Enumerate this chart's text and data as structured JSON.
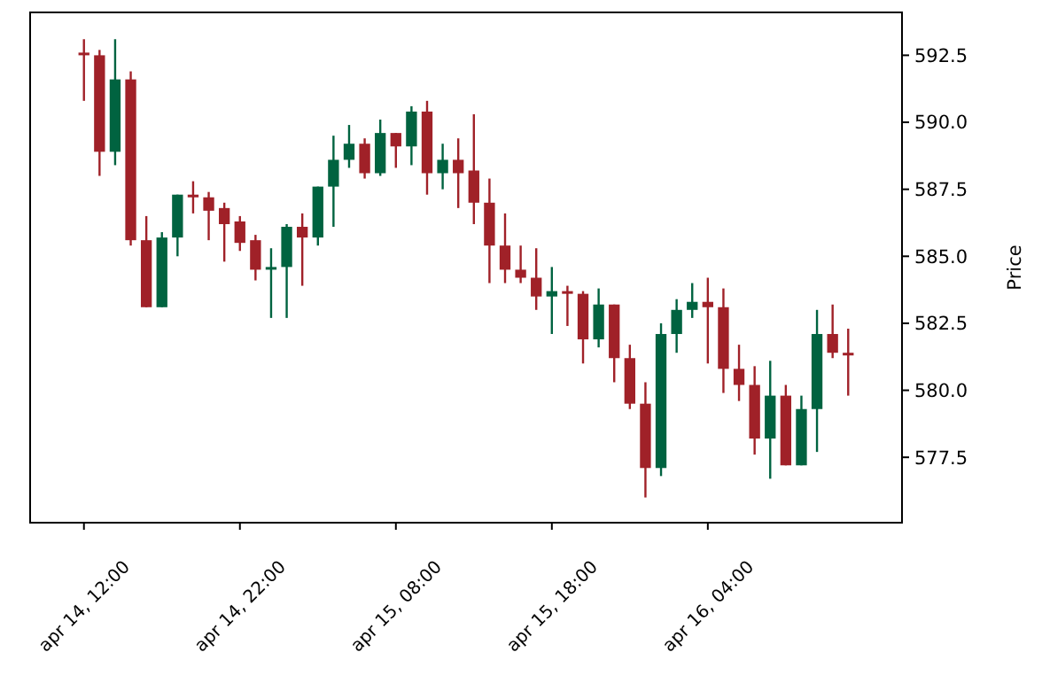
{
  "chart_data": {
    "type": "candlestick",
    "ylabel": "Price",
    "categories": [
      "apr 14, 12:00",
      null,
      null,
      null,
      null,
      null,
      null,
      null,
      null,
      null,
      "apr 14, 22:00",
      null,
      null,
      null,
      null,
      null,
      null,
      null,
      null,
      null,
      "apr 15, 08:00",
      null,
      null,
      null,
      null,
      null,
      null,
      null,
      null,
      null,
      "apr 15, 18:00",
      null,
      null,
      null,
      null,
      null,
      null,
      null,
      null,
      null,
      "apr 16, 04:00",
      null,
      null,
      null,
      null,
      null,
      null,
      null,
      null,
      null
    ],
    "ohlc": [
      [
        592.6,
        593.1,
        590.8,
        592.5
      ],
      [
        592.5,
        592.7,
        588.0,
        588.9
      ],
      [
        588.9,
        593.1,
        588.4,
        591.6
      ],
      [
        591.6,
        591.9,
        585.4,
        585.6
      ],
      [
        585.6,
        586.5,
        583.1,
        583.1
      ],
      [
        583.1,
        585.9,
        583.1,
        585.7
      ],
      [
        585.7,
        587.3,
        585.0,
        587.3
      ],
      [
        587.3,
        587.8,
        586.6,
        587.2
      ],
      [
        587.2,
        587.4,
        585.6,
        586.7
      ],
      [
        586.8,
        587.0,
        584.8,
        586.2
      ],
      [
        586.3,
        586.5,
        585.2,
        585.5
      ],
      [
        585.6,
        585.8,
        584.1,
        584.5
      ],
      [
        584.5,
        585.3,
        582.7,
        584.6
      ],
      [
        584.6,
        586.2,
        582.7,
        586.1
      ],
      [
        586.1,
        586.6,
        583.9,
        585.7
      ],
      [
        585.7,
        587.6,
        585.4,
        587.6
      ],
      [
        587.6,
        589.5,
        586.1,
        588.6
      ],
      [
        588.6,
        589.9,
        588.3,
        589.2
      ],
      [
        589.2,
        589.4,
        587.9,
        588.1
      ],
      [
        588.1,
        590.1,
        588.0,
        589.6
      ],
      [
        589.6,
        589.6,
        588.3,
        589.1
      ],
      [
        589.1,
        590.6,
        588.4,
        590.4
      ],
      [
        590.4,
        590.8,
        587.3,
        588.1
      ],
      [
        588.1,
        589.2,
        587.5,
        588.6
      ],
      [
        588.6,
        589.4,
        586.8,
        588.1
      ],
      [
        588.2,
        590.3,
        586.2,
        587.0
      ],
      [
        587.0,
        587.9,
        584.0,
        585.4
      ],
      [
        585.4,
        586.6,
        584.0,
        584.5
      ],
      [
        584.5,
        585.4,
        584.0,
        584.2
      ],
      [
        584.2,
        585.3,
        583.0,
        583.5
      ],
      [
        583.5,
        584.6,
        582.1,
        583.7
      ],
      [
        583.7,
        583.9,
        582.4,
        583.6
      ],
      [
        583.6,
        583.7,
        581.0,
        581.9
      ],
      [
        581.9,
        583.8,
        581.6,
        583.2
      ],
      [
        583.2,
        583.2,
        580.3,
        581.2
      ],
      [
        581.2,
        581.7,
        579.3,
        579.5
      ],
      [
        579.5,
        580.3,
        576.0,
        577.1
      ],
      [
        577.1,
        582.5,
        576.8,
        582.1
      ],
      [
        582.1,
        583.4,
        581.4,
        583.0
      ],
      [
        583.0,
        584.0,
        582.7,
        583.3
      ],
      [
        583.3,
        584.2,
        581.0,
        583.1
      ],
      [
        583.1,
        583.8,
        579.9,
        580.8
      ],
      [
        580.8,
        581.7,
        579.6,
        580.2
      ],
      [
        580.2,
        580.9,
        577.6,
        578.2
      ],
      [
        578.2,
        581.1,
        576.7,
        579.8
      ],
      [
        579.8,
        580.2,
        577.2,
        577.2
      ],
      [
        577.2,
        579.8,
        577.2,
        579.3
      ],
      [
        579.3,
        583.0,
        577.7,
        582.1
      ],
      [
        582.1,
        583.2,
        581.2,
        581.4
      ],
      [
        581.4,
        582.3,
        579.8,
        581.3
      ]
    ],
    "colors": [
      "#a02128",
      "#a02128",
      "#006340",
      "#a02128",
      "#a02128",
      "#006340",
      "#006340",
      "#a02128",
      "#a02128",
      "#a02128",
      "#a02128",
      "#a02128",
      "#006340",
      "#006340",
      "#a02128",
      "#006340",
      "#006340",
      "#006340",
      "#a02128",
      "#006340",
      "#a02128",
      "#006340",
      "#a02128",
      "#006340",
      "#a02128",
      "#a02128",
      "#a02128",
      "#a02128",
      "#a02128",
      "#a02128",
      "#006340",
      "#a02128",
      "#a02128",
      "#006340",
      "#a02128",
      "#a02128",
      "#a02128",
      "#006340",
      "#006340",
      "#006340",
      "#a02128",
      "#a02128",
      "#a02128",
      "#a02128",
      "#006340",
      "#a02128",
      "#006340",
      "#006340",
      "#a02128",
      "#a02128"
    ],
    "ylim": [
      575.06,
      594.1
    ],
    "yticks": [
      {
        "value": 577.5,
        "label": "577.5"
      },
      {
        "value": 580,
        "label": "580.0"
      },
      {
        "value": 582.5,
        "label": "582.5"
      },
      {
        "value": 585,
        "label": "585.0"
      },
      {
        "value": 587.5,
        "label": "587.5"
      },
      {
        "value": 590,
        "label": "590.0"
      },
      {
        "value": 592.5,
        "label": "592.5"
      }
    ],
    "grid": false
  }
}
